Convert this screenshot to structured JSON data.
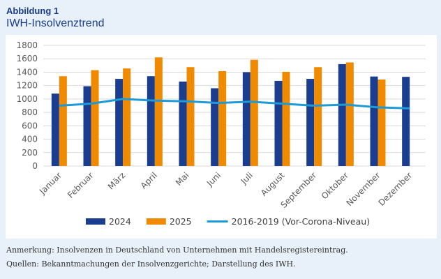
{
  "figure_label": "Abbildung 1",
  "title": "IWH-Insolvenztrend",
  "notes": [
    "Anmerkung: Insolvenzen in Deutschland von Unternehmen mit Handelsregistereintrag.",
    "Quellen: Bekanntmachungen der Insolvenzgerichte; Darstellung des IWH."
  ],
  "chart_data": {
    "type": "bar",
    "categories": [
      "Januar",
      "Februar",
      "März",
      "April",
      "Mai",
      "Juni",
      "Juli",
      "August",
      "September",
      "Oktober",
      "November",
      "Dezember"
    ],
    "series": [
      {
        "name": "2024",
        "type": "bar",
        "color": "#1a3d8f",
        "values": [
          1080,
          1190,
          1300,
          1340,
          1260,
          1160,
          1400,
          1270,
          1300,
          1520,
          1335,
          1330
        ]
      },
      {
        "name": "2025",
        "type": "bar",
        "color": "#f08a00",
        "values": [
          1340,
          1430,
          1455,
          1620,
          1475,
          1415,
          1585,
          1405,
          1475,
          1545,
          1290,
          null
        ]
      },
      {
        "name": "2016-2019 (Vor-Corona-Niveau)",
        "type": "line",
        "color": "#1e9ad6",
        "values": [
          900,
          930,
          1000,
          975,
          965,
          940,
          960,
          930,
          900,
          915,
          875,
          860
        ]
      }
    ],
    "ylim": [
      0,
      1800
    ],
    "yticks": [
      0,
      200,
      400,
      600,
      800,
      1000,
      1200,
      1400,
      1600,
      1800
    ],
    "grid": true,
    "legend": "bottom"
  }
}
